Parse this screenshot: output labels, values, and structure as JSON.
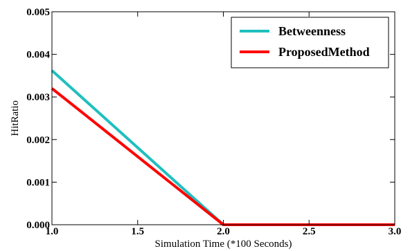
{
  "chart_data": {
    "type": "line",
    "title": "",
    "xlabel": "Simulation Time (*100 Seconds)",
    "ylabel": "HitRatio",
    "xlim": [
      1.0,
      3.0
    ],
    "ylim": [
      0.0,
      0.005
    ],
    "xticks": [
      "1.0",
      "1.5",
      "2.0",
      "2.5",
      "3.0"
    ],
    "yticks": [
      "0.000",
      "0.001",
      "0.002",
      "0.003",
      "0.004",
      "0.005"
    ],
    "grid": false,
    "legend_position": "top-right",
    "series": [
      {
        "name": "Betweenness",
        "color": "#1fbfbf",
        "x": [
          1.0,
          2.0,
          3.0
        ],
        "y": [
          0.00362,
          0.0,
          0.0
        ]
      },
      {
        "name": "ProposedMethod",
        "color": "#ff0000",
        "x": [
          1.0,
          2.0,
          3.0
        ],
        "y": [
          0.0032,
          0.0,
          0.0
        ]
      }
    ]
  }
}
